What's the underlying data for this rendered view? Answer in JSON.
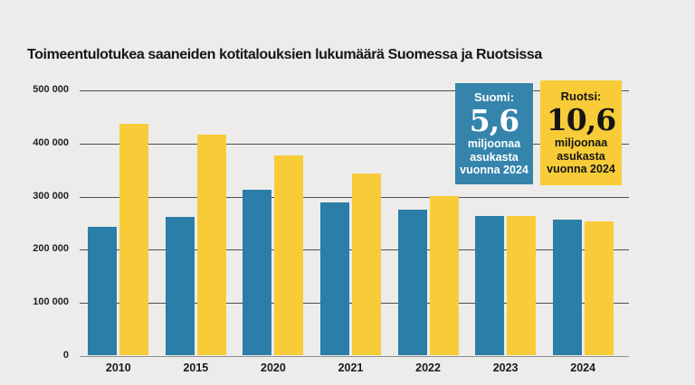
{
  "title": "Toimeentulotukea saaneiden kotitalouksien lukumäärä Suomessa ja Ruotsissa",
  "colors": {
    "background": "#EDECEA",
    "finland_blue": "#2B7EA7",
    "sweden_yellow": "#F7CC38",
    "gridline": "#4C4E50",
    "zero_axis": "#8D9094"
  },
  "info_boxes": [
    {
      "id": "suomi",
      "label": "Suomi:",
      "value": "5,6",
      "lines": [
        "miljoonaa",
        "asukasta",
        "vuonna 2024"
      ],
      "bg": "#3484AC",
      "fg": "#FFFFFF"
    },
    {
      "id": "ruotsi",
      "label": "Ruotsi:",
      "value": "10,6",
      "lines": [
        "miljoonaa",
        "asukasta",
        "vuonna 2024"
      ],
      "bg": "#F7CC38",
      "fg": "#151515"
    }
  ],
  "chart_data": {
    "type": "bar",
    "title": "Toimeentulotukea saaneiden kotitalouksien lukumäärä Suomessa ja Ruotsissa",
    "categories": [
      "2010",
      "2015",
      "2020",
      "2021",
      "2022",
      "2023",
      "2024"
    ],
    "series": [
      {
        "name": "Suomi",
        "color": "#2B7EA7",
        "values": [
          242000,
          261000,
          312000,
          288000,
          274000,
          263000,
          256000
        ]
      },
      {
        "name": "Ruotsi",
        "color": "#F7CC38",
        "values": [
          437000,
          416000,
          377000,
          343000,
          300000,
          262000,
          252000
        ]
      }
    ],
    "xlabel": "",
    "ylabel": "",
    "ylim": [
      0,
      500000
    ],
    "ytick_labels": [
      "500 000",
      "400 000",
      "300 000",
      "200 000",
      "100 000",
      "0"
    ],
    "grid": true,
    "legend_position": "top-right info boxes"
  }
}
